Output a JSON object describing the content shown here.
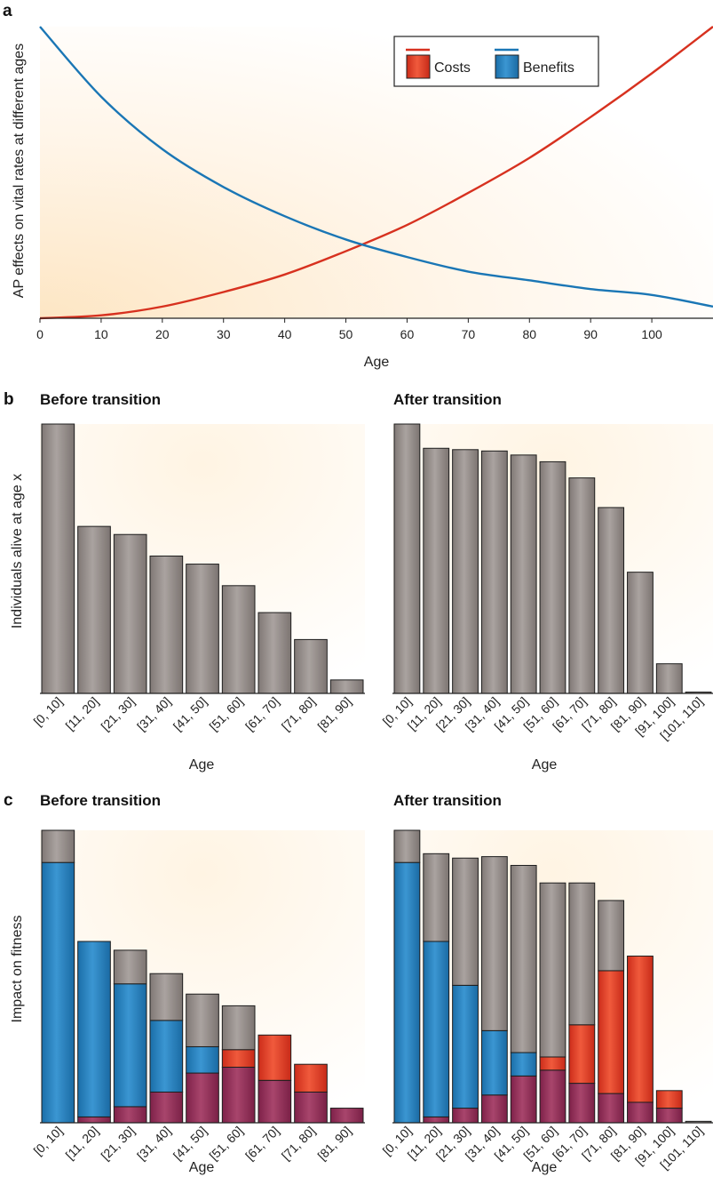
{
  "chart_data": [
    {
      "panel": "a",
      "type": "line",
      "title": "",
      "xlabel": "Age",
      "ylabel": "AP effects on vital rates at different ages",
      "xlim": [
        0,
        110
      ],
      "xticks": [
        "0",
        "10",
        "20",
        "30",
        "40",
        "50",
        "60",
        "70",
        "80",
        "90",
        "100"
      ],
      "series": [
        {
          "name": "Costs",
          "color": "#d7311f",
          "x": [
            0,
            10,
            20,
            30,
            40,
            50,
            60,
            70,
            80,
            90,
            100,
            110
          ],
          "y": [
            0.0,
            0.01,
            0.04,
            0.09,
            0.15,
            0.23,
            0.32,
            0.43,
            0.55,
            0.69,
            0.84,
            1.0
          ]
        },
        {
          "name": "Benefits",
          "color": "#1a76b5",
          "x": [
            0,
            10,
            20,
            30,
            40,
            50,
            60,
            70,
            80,
            90,
            100,
            110
          ],
          "y": [
            1.0,
            0.76,
            0.58,
            0.45,
            0.35,
            0.27,
            0.21,
            0.16,
            0.13,
            0.1,
            0.08,
            0.04
          ]
        }
      ],
      "legend": "top-right",
      "grid": false
    },
    {
      "panel": "b",
      "type": "bar",
      "title": "Before transition",
      "xlabel": "Age",
      "ylabel": "Individuals alive at age x",
      "categories": [
        "[0, 10]",
        "[11, 20]",
        "[21, 30]",
        "[31, 40]",
        "[41, 50]",
        "[51, 60]",
        "[61, 70]",
        "[71, 80]",
        "[81, 90]"
      ],
      "values": [
        1.0,
        0.62,
        0.59,
        0.51,
        0.48,
        0.4,
        0.3,
        0.2,
        0.05
      ],
      "ylim": [
        0,
        1
      ]
    },
    {
      "panel": "b",
      "type": "bar",
      "title": "After transition",
      "xlabel": "Age",
      "ylabel": "",
      "categories": [
        "[0, 10]",
        "[11, 20]",
        "[21, 30]",
        "[31, 40]",
        "[41, 50]",
        "[51, 60]",
        "[61, 70]",
        "[71, 80]",
        "[81, 90]",
        "[91, 100]",
        "[101, 110]"
      ],
      "values": [
        1.0,
        0.91,
        0.905,
        0.9,
        0.885,
        0.86,
        0.8,
        0.69,
        0.45,
        0.11,
        0.005
      ],
      "ylim": [
        0,
        1
      ]
    },
    {
      "panel": "c",
      "type": "bar",
      "stacked": true,
      "title": "Before transition",
      "xlabel": "Age",
      "ylabel": "Impact on fitness",
      "categories": [
        "[0, 10]",
        "[11, 20]",
        "[21, 30]",
        "[31, 40]",
        "[41, 50]",
        "[51, 60]",
        "[61, 70]",
        "[71, 80]",
        "[81, 90]"
      ],
      "series": [
        {
          "name": "",
          "color": "#8a2752",
          "values": [
            0.0,
            0.02,
            0.055,
            0.105,
            0.17,
            0.19,
            0.145,
            0.105,
            0.05
          ]
        },
        {
          "name": "Benefits",
          "color": "#1a76b5",
          "values": [
            0.89,
            0.6,
            0.42,
            0.245,
            0.09,
            0.0,
            0.0,
            0.0,
            0.0
          ]
        },
        {
          "name": "Costs",
          "color": "#d7311f",
          "values": [
            0.0,
            0.0,
            0.0,
            0.0,
            0.0,
            0.06,
            0.155,
            0.095,
            0.0
          ]
        },
        {
          "name": "",
          "color": "#8d8683",
          "values": [
            0.11,
            0.0,
            0.115,
            0.16,
            0.18,
            0.15,
            0.0,
            0.0,
            0.0
          ]
        }
      ],
      "ylim": [
        0,
        1
      ]
    },
    {
      "panel": "c",
      "type": "bar",
      "stacked": true,
      "title": "After transition",
      "xlabel": "Age",
      "ylabel": "",
      "categories": [
        "[0, 10]",
        "[11, 20]",
        "[21, 30]",
        "[31, 40]",
        "[41, 50]",
        "[51, 60]",
        "[61, 70]",
        "[71, 80]",
        "[81, 90]",
        "[91, 100]",
        "[101, 110]"
      ],
      "series": [
        {
          "name": "",
          "color": "#8a2752",
          "values": [
            0.0,
            0.02,
            0.05,
            0.095,
            0.16,
            0.18,
            0.135,
            0.1,
            0.07,
            0.05,
            0.0
          ]
        },
        {
          "name": "Benefits",
          "color": "#1a76b5",
          "values": [
            0.89,
            0.6,
            0.42,
            0.22,
            0.08,
            0.0,
            0.0,
            0.0,
            0.0,
            0.0,
            0.0
          ]
        },
        {
          "name": "Costs",
          "color": "#d7311f",
          "values": [
            0.0,
            0.0,
            0.0,
            0.0,
            0.0,
            0.045,
            0.2,
            0.42,
            0.5,
            0.06,
            0.0
          ]
        },
        {
          "name": "",
          "color": "#8d8683",
          "values": [
            0.11,
            0.3,
            0.435,
            0.595,
            0.64,
            0.595,
            0.485,
            0.24,
            0.0,
            0.0,
            0.005
          ]
        }
      ],
      "ylim": [
        0,
        1
      ]
    }
  ]
}
